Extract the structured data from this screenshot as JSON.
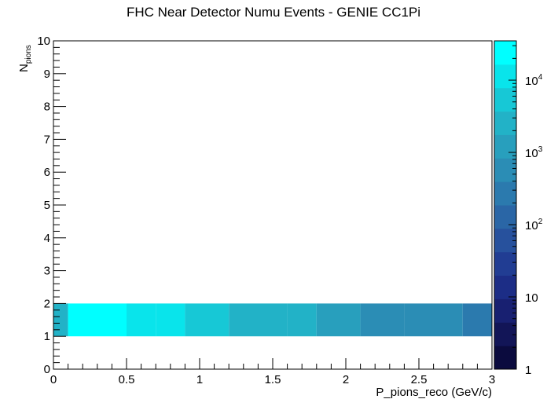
{
  "chart_data": {
    "type": "heatmap",
    "title": "FHC Near Detector Numu Events - GENIE CC1Pi",
    "xlabel": "P_pions_reco (GeV/c)",
    "ylabel": {
      "main": "N",
      "sub": "pions"
    },
    "xlim": [
      0,
      3
    ],
    "ylim": [
      0,
      10
    ],
    "x_ticks": [
      "0",
      "0.5",
      "1",
      "1.5",
      "2",
      "2.5",
      "3"
    ],
    "y_ticks": [
      "0",
      "1",
      "2",
      "3",
      "4",
      "5",
      "6",
      "7",
      "8",
      "9",
      "10"
    ],
    "z_scale": "log",
    "zlim": [
      1,
      35000
    ],
    "z_ticks": [
      {
        "base": "1",
        "exp": ""
      },
      {
        "base": "10",
        "exp": ""
      },
      {
        "base": "10",
        "exp": "2"
      },
      {
        "base": "10",
        "exp": "3"
      },
      {
        "base": "10",
        "exp": "4"
      }
    ],
    "palette": [
      "#0b0b3e",
      "#121557",
      "#182071",
      "#1c2d86",
      "#213d93",
      "#27519d",
      "#2a66a6",
      "#2b7aae",
      "#2b8db5",
      "#289fbd",
      "#22b2c7",
      "#17c8d6",
      "#09e4eb",
      "#00ffff"
    ],
    "bins": [
      {
        "x0": 0.0,
        "x1": 0.1,
        "y0": 1,
        "y1": 2,
        "z": 2000
      },
      {
        "x0": 0.1,
        "x1": 0.5,
        "y0": 1,
        "y1": 2,
        "z": 33000
      },
      {
        "x0": 0.5,
        "x1": 0.7,
        "y0": 1,
        "y1": 2,
        "z": 12000
      },
      {
        "x0": 0.7,
        "x1": 0.9,
        "y0": 1,
        "y1": 2,
        "z": 8500
      },
      {
        "x0": 0.9,
        "x1": 1.2,
        "y0": 1,
        "y1": 2,
        "z": 5000
      },
      {
        "x0": 1.2,
        "x1": 1.6,
        "y0": 1,
        "y1": 2,
        "z": 3500
      },
      {
        "x0": 1.6,
        "x1": 1.8,
        "y0": 1,
        "y1": 2,
        "z": 2500
      },
      {
        "x0": 1.8,
        "x1": 2.0,
        "y0": 1,
        "y1": 2,
        "z": 1600
      },
      {
        "x0": 2.0,
        "x1": 2.1,
        "y0": 1,
        "y1": 2,
        "z": 1200
      },
      {
        "x0": 2.1,
        "x1": 2.4,
        "y0": 1,
        "y1": 2,
        "z": 750
      },
      {
        "x0": 2.4,
        "x1": 2.8,
        "y0": 1,
        "y1": 2,
        "z": 420
      },
      {
        "x0": 2.8,
        "x1": 3.0,
        "y0": 1,
        "y1": 2,
        "z": 260
      }
    ]
  }
}
